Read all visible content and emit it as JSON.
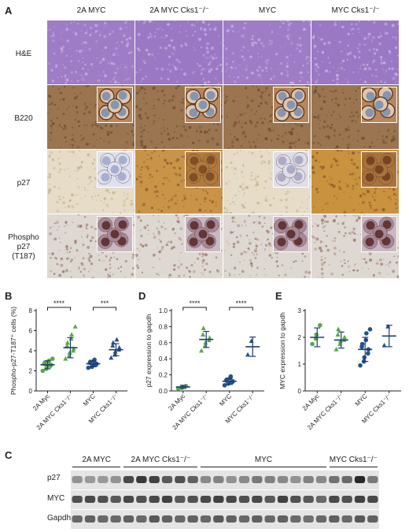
{
  "panel_a": {
    "letter": "A",
    "columns": [
      "2A MYC",
      "2A MYC Cks1⁻/⁻",
      "MYC",
      "MYC Cks1⁻/⁻"
    ],
    "rows": [
      {
        "label_lines": [
          "H&E"
        ],
        "bg": "#9e7cc6",
        "spot": "#c9b3e3",
        "inset": false
      },
      {
        "label_lines": [
          "B220"
        ],
        "bg": "#9a7550",
        "spot": "#6b4a2c",
        "inset": true,
        "inset_bg": "#b9875c",
        "cell": "#e0c7ad",
        "nuc": "#7c8fb0"
      },
      {
        "label_lines": [
          "p27"
        ],
        "bg": "#e6dcc8",
        "spot": "#c8a77a",
        "inset": true,
        "inset_bg": "#e7e4ef",
        "cell": "#b9bbd7",
        "nuc": "#9fa4c7"
      },
      {
        "label_lines": [
          "Phospho",
          "p27",
          "(T187)"
        ],
        "bg": "#ded8d2",
        "spot": "#9a7a6a",
        "inset": true,
        "inset_bg": "#c9b8c3",
        "cell": "#a68899",
        "nuc": "#5b2c2c"
      }
    ],
    "col_tints": [
      {
        "p27_bg": "#e6dcc8",
        "p27_inset": "#dfe0ef",
        "p27_nuc": "#a2a9cc"
      },
      {
        "p27_bg": "#c99448",
        "p27_inset": "#b07a3e",
        "p27_nuc": "#7b4a22"
      },
      {
        "p27_bg": "#e6dcc8",
        "p27_inset": "#dedde9",
        "p27_nuc": "#a6a4c2"
      },
      {
        "p27_bg": "#c8923f",
        "p27_inset": "#a8733d",
        "p27_nuc": "#6f3f1d"
      }
    ]
  },
  "chart_data": [
    {
      "letter": "B",
      "type": "scatter",
      "ylabel": "Phospho-p27-T187⁺ cells (%)",
      "ylim": [
        0,
        8
      ],
      "yticks": [
        "0",
        "2",
        "4",
        "6",
        "8"
      ],
      "categories": [
        "2A Myc",
        "2A MYC Cks1⁻/⁻",
        "MYC",
        "MYC Cks1⁻/⁻"
      ],
      "colors": [
        "#5aa84a",
        "#5aa84a",
        "#24528a",
        "#24528a"
      ],
      "markers": [
        "circle",
        "triangle",
        "circle",
        "triangle"
      ],
      "means": [
        2.6,
        4.3,
        2.7,
        4.1
      ],
      "sd": [
        0.4,
        1.0,
        0.3,
        0.6
      ],
      "points": [
        [
          2.0,
          2.2,
          2.4,
          2.5,
          2.6,
          2.7,
          2.8,
          2.9,
          3.0,
          3.2
        ],
        [
          3.2,
          3.5,
          3.8,
          4.0,
          4.2,
          4.5,
          4.8,
          5.2,
          5.6,
          6.4
        ],
        [
          2.3,
          2.4,
          2.5,
          2.6,
          2.7,
          2.8,
          2.9,
          3.0,
          3.1
        ],
        [
          3.3,
          3.6,
          3.9,
          4.1,
          4.3,
          4.5,
          4.8,
          5.1
        ]
      ],
      "brackets": [
        {
          "from": 0,
          "to": 1,
          "label": "****"
        },
        {
          "from": 2,
          "to": 3,
          "label": "***"
        }
      ]
    },
    {
      "letter": "D",
      "type": "scatter",
      "ylabel": "p27 expression to gapdh",
      "ylim": [
        0,
        1.0
      ],
      "yticks": [
        "0.0",
        "0.2",
        "0.4",
        "0.6",
        "0.8",
        "1.0"
      ],
      "categories": [
        "2A Myc",
        "2A MYC Cks1⁻/⁻",
        "MYC",
        "MYC Cks1⁻/⁻"
      ],
      "colors": [
        "#5aa84a",
        "#5aa84a",
        "#24528a",
        "#24528a"
      ],
      "markers": [
        "circle",
        "triangle",
        "circle",
        "triangle"
      ],
      "means": [
        0.05,
        0.64,
        0.12,
        0.55
      ],
      "sd": [
        0.02,
        0.1,
        0.04,
        0.12
      ],
      "points": [
        [
          0.03,
          0.04,
          0.05,
          0.06
        ],
        [
          0.5,
          0.56,
          0.6,
          0.63,
          0.66,
          0.7,
          0.78
        ],
        [
          0.07,
          0.09,
          0.1,
          0.11,
          0.12,
          0.13,
          0.14,
          0.16,
          0.18
        ],
        [
          0.45,
          0.62
        ]
      ],
      "brackets": [
        {
          "from": 0,
          "to": 1,
          "label": "****"
        },
        {
          "from": 2,
          "to": 3,
          "label": "****"
        }
      ]
    },
    {
      "letter": "E",
      "type": "scatter",
      "ylabel": "MYC expression to gapdh",
      "ylim": [
        0,
        3
      ],
      "yticks": [
        "0",
        "1",
        "2",
        "3"
      ],
      "categories": [
        "2A Myc",
        "2A MYC Cks1⁻/⁻",
        "MYC",
        "MYC Cks1⁻/⁻"
      ],
      "colors": [
        "#5aa84a",
        "#5aa84a",
        "#24528a",
        "#24528a"
      ],
      "markers": [
        "circle",
        "triangle",
        "circle",
        "triangle"
      ],
      "means": [
        2.0,
        1.9,
        1.55,
        2.05
      ],
      "sd": [
        0.35,
        0.3,
        0.45,
        0.4
      ],
      "points": [
        [
          1.75,
          1.95,
          2.1,
          2.45
        ],
        [
          1.55,
          1.75,
          1.85,
          1.9,
          2.0,
          2.1,
          2.3
        ],
        [
          0.95,
          1.1,
          1.25,
          1.4,
          1.55,
          1.65,
          1.75,
          1.9,
          2.15,
          2.3
        ],
        [
          1.7,
          2.4
        ]
      ],
      "brackets": []
    }
  ],
  "panel_c": {
    "letter": "C",
    "groups": [
      {
        "label": "2A MYC",
        "lanes": 4
      },
      {
        "label": "2A MYC Cks1⁻/⁻",
        "lanes": 6
      },
      {
        "label": "MYC",
        "lanes": 10
      },
      {
        "label": "MYC Cks1⁻/⁻",
        "lanes": 4
      }
    ],
    "rows": [
      {
        "label": "p27",
        "intensities": [
          0.35,
          0.3,
          0.3,
          0.35,
          0.8,
          0.9,
          0.85,
          0.7,
          0.75,
          0.65,
          0.4,
          0.45,
          0.35,
          0.4,
          0.5,
          0.45,
          0.4,
          0.35,
          0.45,
          0.4,
          0.55,
          0.6,
          1.0,
          0.5
        ]
      },
      {
        "label": "MYC",
        "intensities": [
          0.75,
          0.8,
          0.75,
          0.7,
          0.8,
          0.75,
          0.8,
          0.85,
          0.7,
          0.75,
          0.8,
          0.85,
          0.8,
          0.75,
          0.8,
          0.7,
          0.85,
          0.75,
          0.7,
          0.6,
          0.8,
          0.75,
          0.85,
          0.8
        ]
      },
      {
        "label": "Gapdh",
        "intensities": [
          0.6,
          0.65,
          0.6,
          0.6,
          0.65,
          0.6,
          0.7,
          0.65,
          0.6,
          0.65,
          0.6,
          0.7,
          0.65,
          0.6,
          0.65,
          0.6,
          0.65,
          0.6,
          0.55,
          0.6,
          0.65,
          0.6,
          0.7,
          0.65
        ]
      }
    ]
  }
}
